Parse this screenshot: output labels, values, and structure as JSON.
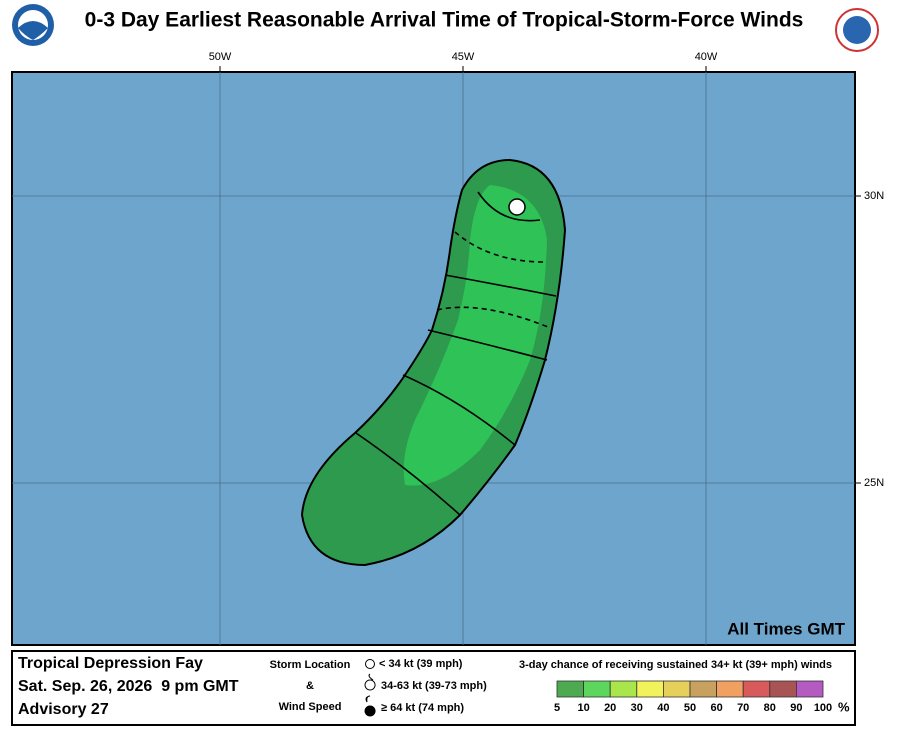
{
  "header": {
    "title": "0-3 Day Earliest Reasonable Arrival Time of Tropical-Storm-Force Winds"
  },
  "map": {
    "longitude_labels": [
      "50W",
      "45W",
      "40W"
    ],
    "latitude_labels": [
      "30N",
      "25N"
    ],
    "note": "All Times GMT"
  },
  "footer": {
    "storm_name": "Tropical Depression Fay",
    "date": "Sat. Sep. 26, 2026  9 pm GMT",
    "advisory": "Advisory 27",
    "storm_location": {
      "heading": [
        "Storm Location",
        "&",
        "Wind Speed"
      ],
      "items": [
        "< 34 kt (39 mph)",
        "34-63 kt (39-73 mph)",
        "≥ 64 kt (74 mph)"
      ]
    },
    "probability": {
      "title": "3-day chance of receiving sustained 34+ kt (39+ mph) winds",
      "colors": [
        "#4daa50",
        "#5cd65c",
        "#a8e64c",
        "#f2f25a",
        "#e6d05a",
        "#c8a060",
        "#f0a060",
        "#d85a5a",
        "#a85454",
        "#b45ac0"
      ],
      "labels": [
        5,
        10,
        20,
        30,
        40,
        50,
        60,
        70,
        80,
        90,
        100
      ],
      "unit": "%"
    }
  }
}
